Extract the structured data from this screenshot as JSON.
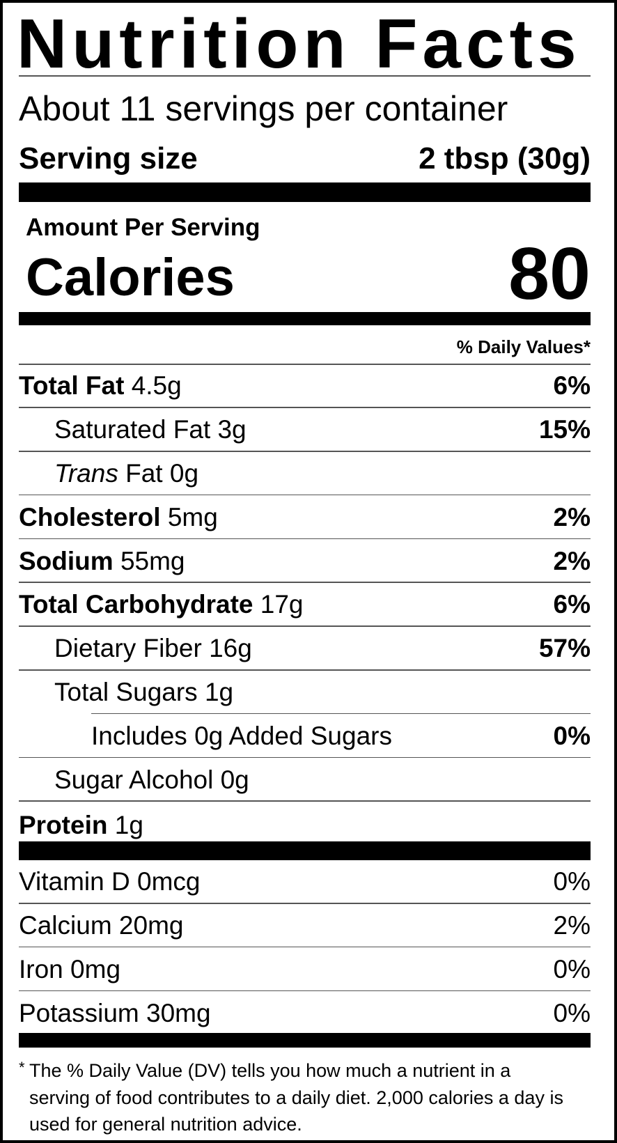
{
  "title": "Nutrition Facts",
  "servings_per_container": "About 11 servings per container",
  "serving_size": {
    "label": "Serving size",
    "value": "2 tbsp (30g)"
  },
  "amount_per_serving": "Amount Per Serving",
  "calories": {
    "label": "Calories",
    "value": "80"
  },
  "daily_values_header": "% Daily Values*",
  "nutrients": [
    {
      "name": "Total Fat",
      "amount": "4.5g",
      "dv": "6%",
      "bold": true,
      "indent": 0
    },
    {
      "name": "Saturated Fat",
      "amount": "3g",
      "dv": "15%",
      "bold": false,
      "indent": 1
    },
    {
      "italic": "Trans",
      "name": "Fat",
      "amount": "0g",
      "dv": "",
      "bold": false,
      "indent": 1
    },
    {
      "name": "Cholesterol",
      "amount": "5mg",
      "dv": "2%",
      "bold": true,
      "indent": 0
    },
    {
      "name": "Sodium",
      "amount": "55mg",
      "dv": "2%",
      "bold": true,
      "indent": 0
    },
    {
      "name": "Total Carbohydrate",
      "amount": "17g",
      "dv": "6%",
      "bold": true,
      "indent": 0
    },
    {
      "name": "Dietary Fiber",
      "amount": "16g",
      "dv": "57%",
      "bold": false,
      "indent": 1
    },
    {
      "name": "Total Sugars",
      "amount": "1g",
      "dv": "",
      "bold": false,
      "indent": 1
    },
    {
      "name": "Includes 0g Added Sugars",
      "amount": "",
      "dv": "0%",
      "bold": false,
      "indent": 2
    },
    {
      "name": "Sugar Alcohol",
      "amount": "0g",
      "dv": "",
      "bold": false,
      "indent": 1
    },
    {
      "name": "Protein",
      "amount": "1g",
      "dv": "",
      "bold": true,
      "indent": 0
    }
  ],
  "vitamins": [
    {
      "name": "Vitamin D",
      "amount": "0mcg",
      "dv": "0%"
    },
    {
      "name": "Calcium",
      "amount": "20mg",
      "dv": "2%"
    },
    {
      "name": "Iron",
      "amount": "0mg",
      "dv": "0%"
    },
    {
      "name": "Potassium",
      "amount": "30mg",
      "dv": "0%"
    }
  ],
  "footnote": {
    "asterisk": "*",
    "text": "The % Daily Value (DV) tells you how much a nutrient in a serving of food contributes to a daily diet. 2,000 calories a day is used for general nutrition advice."
  }
}
